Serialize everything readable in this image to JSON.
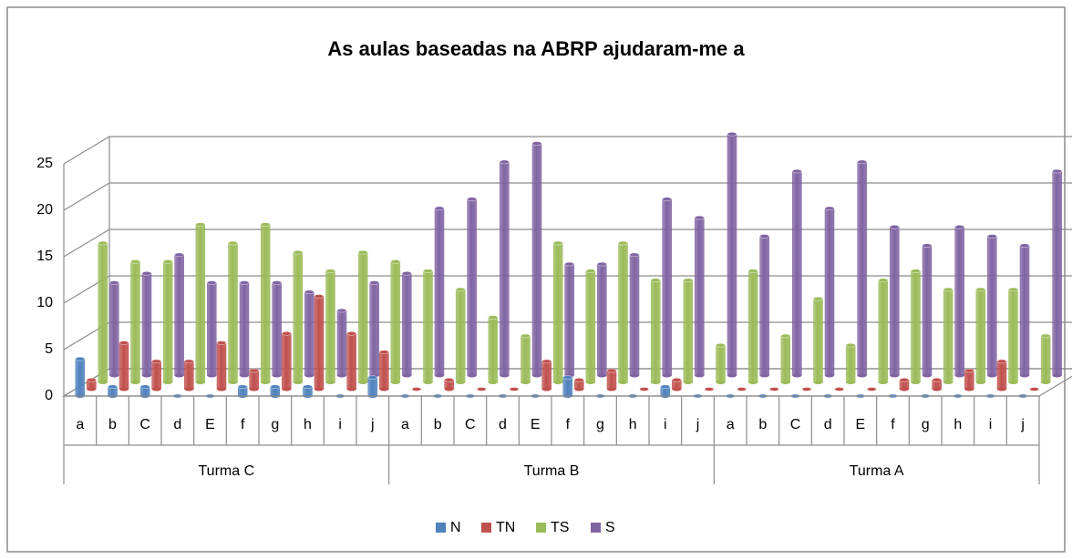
{
  "chart_data": {
    "type": "bar3d",
    "title": "As aulas baseadas na ABRP ajudaram-me a",
    "categories": [
      "a",
      "b",
      "C",
      "d",
      "E",
      "f",
      "g",
      "h",
      "i",
      "j",
      "a",
      "b",
      "C",
      "d",
      "E",
      "f",
      "g",
      "h",
      "i",
      "j",
      "a",
      "b",
      "C",
      "d",
      "E",
      "f",
      "g",
      "h",
      "i",
      "j"
    ],
    "category_groups": [
      "Turma C",
      "Turma B",
      "Turma A"
    ],
    "series": [
      {
        "name": "N",
        "color": "#4f81bd",
        "values": [
          4,
          1,
          1,
          0,
          0,
          1,
          1,
          1,
          0,
          2,
          0,
          0,
          0,
          0,
          0,
          2,
          0,
          0,
          1,
          0,
          0,
          0,
          0,
          0,
          0,
          0,
          0,
          0,
          0,
          0
        ]
      },
      {
        "name": "TN",
        "color": "#c0504d",
        "values": [
          1,
          5,
          3,
          3,
          5,
          2,
          6,
          10,
          6,
          4,
          0,
          1,
          0,
          0,
          3,
          1,
          2,
          0,
          1,
          0,
          0,
          0,
          0,
          0,
          0,
          1,
          1,
          2,
          3,
          0
        ]
      },
      {
        "name": "TS",
        "color": "#9bbb59",
        "values": [
          15,
          13,
          13,
          17,
          15,
          17,
          14,
          12,
          14,
          13,
          12,
          10,
          7,
          5,
          15,
          12,
          15,
          11,
          11,
          4,
          12,
          5,
          9,
          4,
          11,
          12,
          10,
          10,
          10,
          5
        ]
      },
      {
        "name": "S",
        "color": "#8064a2",
        "values": [
          10,
          11,
          13,
          10,
          10,
          10,
          9,
          7,
          10,
          11,
          18,
          19,
          23,
          25,
          12,
          12,
          13,
          19,
          17,
          26,
          15,
          22,
          18,
          23,
          16,
          14,
          16,
          15,
          14,
          22
        ]
      }
    ],
    "ylim": [
      0,
      25
    ],
    "yticks": [
      0,
      5,
      10,
      15,
      20,
      25
    ],
    "grid": true,
    "legend": "bottom"
  }
}
